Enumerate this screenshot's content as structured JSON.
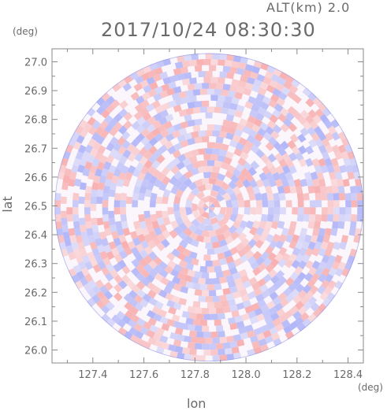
{
  "header": {
    "altitude_label": "ALT(km) 2.0",
    "timestamp": "2017/10/24 08:30:30"
  },
  "axes": {
    "x_unit": "(deg)",
    "y_unit": "(deg)",
    "x_title": "lon",
    "y_title": "lat"
  },
  "chart_data": {
    "type": "heatmap",
    "subtype": "radar-ppi-circular-field",
    "title": "2017/10/24 08:30:30",
    "subtitle": "ALT(km) 2.0",
    "xlabel": "lon",
    "ylabel": "lat",
    "x_unit": "(deg)",
    "y_unit": "(deg)",
    "xlim": [
      127.24,
      128.46
    ],
    "ylim": [
      25.955,
      27.045
    ],
    "x_ticks": [
      "127.4",
      "127.6",
      "127.8",
      "128.0",
      "128.2",
      "128.4"
    ],
    "x_tick_values": [
      127.4,
      127.6,
      127.8,
      128.0,
      128.2,
      128.4
    ],
    "y_ticks": [
      "26.0",
      "26.1",
      "26.2",
      "26.3",
      "26.4",
      "26.5",
      "26.6",
      "26.7",
      "26.8",
      "26.9",
      "27.0"
    ],
    "y_tick_values": [
      26.0,
      26.1,
      26.2,
      26.3,
      26.4,
      26.5,
      26.6,
      26.7,
      26.8,
      26.9,
      27.0
    ],
    "center": {
      "lon": 127.855,
      "lat": 26.495
    },
    "field_radius_lat": 0.535,
    "colors": {
      "positive": "#f7a9a9",
      "negative": "#a9aff7",
      "neutral": "#ffffff",
      "axis": "#888888"
    },
    "grid": false
  }
}
